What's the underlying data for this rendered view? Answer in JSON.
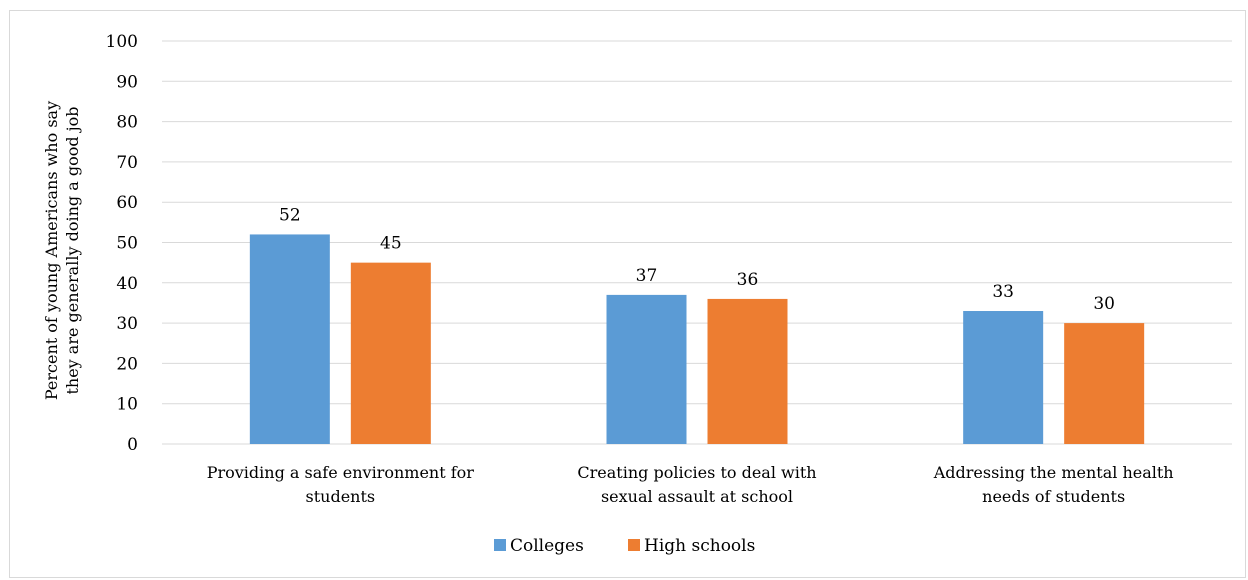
{
  "chart_data": {
    "type": "bar",
    "title": "",
    "xlabel": "",
    "ylabel_lines": [
      "Percent of young Americans who say",
      "they are generally doing a good job"
    ],
    "ylim": [
      0,
      100
    ],
    "yticks": [
      0,
      10,
      20,
      30,
      40,
      50,
      60,
      70,
      80,
      90,
      100
    ],
    "categories": [
      [
        "Providing a safe environment for",
        "students"
      ],
      [
        "Creating policies to deal with",
        "sexual assault at school"
      ],
      [
        "Addressing the mental health",
        "needs of students"
      ]
    ],
    "series": [
      {
        "name": "Colleges",
        "color": "#5b9bd5",
        "values": [
          52,
          37,
          33
        ]
      },
      {
        "name": "High schools",
        "color": "#ed7d31",
        "values": [
          45,
          36,
          30
        ]
      }
    ],
    "grid": true,
    "legend_position": "bottom-center",
    "data_labels": true
  }
}
